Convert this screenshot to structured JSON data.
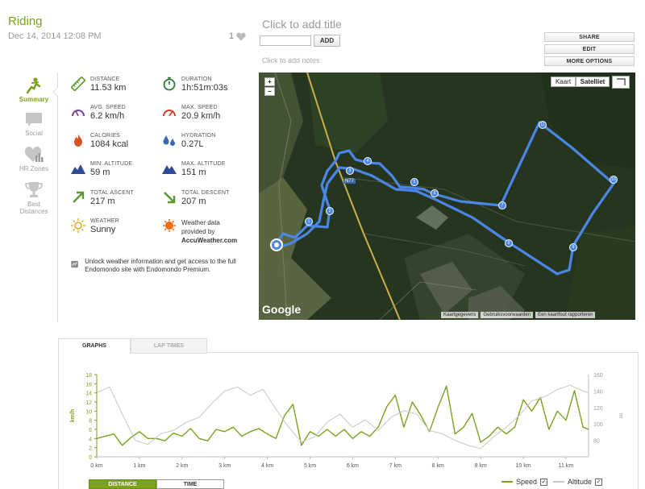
{
  "header": {
    "title": "Riding",
    "date": "Dec 14, 2014 12:08 PM",
    "likes": "1",
    "add_title": "Click to add title",
    "add_button": "ADD",
    "add_notes": "Click to add notes"
  },
  "actions": {
    "share": "SHARE",
    "edit": "EDIT",
    "more": "MORE OPTIONS"
  },
  "sidenav": {
    "summary": "Summary",
    "social": "Social",
    "hr_zones": "HR Zones",
    "best": "Best Distances"
  },
  "stats": {
    "distance": {
      "label": "DISTANCE",
      "value": "11.53 km"
    },
    "duration": {
      "label": "DURATION",
      "value": "1h:51m:03s"
    },
    "avg_speed": {
      "label": "AVG. SPEED",
      "value": "6.2 km/h"
    },
    "max_speed": {
      "label": "MAX. SPEED",
      "value": "20.9 km/h"
    },
    "calories": {
      "label": "CALORIES",
      "value": "1084 kcal"
    },
    "hydration": {
      "label": "HYDRATION",
      "value": "0.27L"
    },
    "min_alt": {
      "label": "MIN. ALTITUDE",
      "value": "59 m"
    },
    "max_alt": {
      "label": "MAX. ALTITUDE",
      "value": "151 m"
    },
    "ascent": {
      "label": "TOTAL ASCENT",
      "value": "217 m"
    },
    "descent": {
      "label": "TOTAL DESCENT",
      "value": "207 m"
    },
    "weather": {
      "label": "WEATHER",
      "value": "Sunny"
    },
    "weather_data": {
      "line1": "Weather data",
      "line2": "provided by",
      "brand": "AccuWeather.com"
    }
  },
  "unlock_text": "Unlock weather information and get access to the full Endomondo site with Endomondo Premium.",
  "map": {
    "zoom_in": "+",
    "zoom_out": "−",
    "type_map": "Kaart",
    "type_satellite": "Satelliet",
    "logo": "Google",
    "road_label": "N77",
    "footer": {
      "data": "Kaartgegevens",
      "terms": "Gebruiksvoorwaarden",
      "report": "Een kaartfout rapporteren"
    },
    "markers": [
      "1",
      "2",
      "3",
      "4",
      "5",
      "6",
      "7",
      "8",
      "9",
      "10",
      "11"
    ]
  },
  "graph_tabs": {
    "graphs": "GRAPHS",
    "laps": "LAP TIMES"
  },
  "graph_toggle": {
    "distance": "DISTANCE",
    "time": "TIME"
  },
  "legend": {
    "speed": "Speed",
    "altitude": "Altitude"
  },
  "colors": {
    "accent": "#7aa21d",
    "speed": "#7aa21d",
    "altitude": "#c8c8c8",
    "route": "#4a86e8"
  },
  "chart_data": {
    "type": "line",
    "xlabel": "",
    "ylabel": "km/h",
    "y2label": "m",
    "xlim": [
      0,
      11.53
    ],
    "ylim": [
      0,
      18
    ],
    "y2lim": [
      60,
      160
    ],
    "x_ticks": [
      "0 km",
      "1 km",
      "2 km",
      "3 km",
      "4 km",
      "5 km",
      "6 km",
      "7 km",
      "8 km",
      "9 km",
      "10 km",
      "11 km"
    ],
    "y_ticks": [
      "0",
      "2",
      "4",
      "6",
      "8",
      "10",
      "12",
      "14",
      "16",
      "18"
    ],
    "y2_ticks": [
      "80",
      "100",
      "120",
      "140",
      "160"
    ],
    "series": [
      {
        "name": "Speed",
        "axis": "left",
        "x": [
          0,
          0.2,
          0.4,
          0.6,
          0.8,
          1.0,
          1.2,
          1.4,
          1.6,
          1.8,
          2.0,
          2.2,
          2.4,
          2.6,
          2.8,
          3.0,
          3.2,
          3.4,
          3.6,
          3.8,
          4.0,
          4.2,
          4.4,
          4.6,
          4.8,
          5.0,
          5.2,
          5.4,
          5.6,
          5.8,
          6.0,
          6.2,
          6.4,
          6.6,
          6.8,
          7.0,
          7.2,
          7.4,
          7.6,
          7.8,
          8.0,
          8.2,
          8.4,
          8.6,
          8.8,
          9.0,
          9.2,
          9.4,
          9.6,
          9.8,
          10.0,
          10.2,
          10.4,
          10.6,
          10.8,
          11.0,
          11.2,
          11.4,
          11.53
        ],
        "values": [
          4,
          4.5,
          5,
          2.5,
          4.2,
          5.5,
          4,
          4,
          3.5,
          5.2,
          4.5,
          6.2,
          4,
          3.5,
          6,
          5.5,
          6.5,
          4.5,
          5.5,
          6.2,
          5,
          4,
          9,
          11.5,
          2.5,
          5.5,
          4.5,
          6,
          4.5,
          6,
          4,
          5.5,
          4.5,
          6.5,
          11,
          13.5,
          6.5,
          12,
          9,
          5.5,
          10.8,
          15.5,
          5,
          6.5,
          9.5,
          3.2,
          4.5,
          6.5,
          5,
          6.5,
          12.5,
          10,
          13,
          6,
          10,
          8,
          14.5,
          6.5,
          6
        ]
      },
      {
        "name": "Altitude",
        "axis": "right",
        "x": [
          0,
          0.3,
          0.6,
          0.9,
          1.2,
          1.5,
          1.8,
          2.1,
          2.4,
          2.7,
          3.0,
          3.3,
          3.6,
          3.9,
          4.2,
          4.5,
          4.8,
          5.1,
          5.4,
          5.7,
          6.0,
          6.3,
          6.6,
          6.9,
          7.2,
          7.5,
          7.8,
          8.1,
          8.4,
          8.7,
          9.0,
          9.3,
          9.6,
          9.9,
          10.2,
          10.5,
          10.8,
          11.1,
          11.4,
          11.53
        ],
        "values": [
          138,
          145,
          112,
          80,
          75,
          88,
          92,
          102,
          108,
          125,
          140,
          145,
          135,
          142,
          118,
          96,
          78,
          84,
          102,
          112,
          96,
          105,
          92,
          108,
          116,
          112,
          92,
          88,
          80,
          74,
          70,
          84,
          96,
          110,
          128,
          133,
          142,
          147,
          140,
          138
        ]
      }
    ],
    "legend": "bottom-right",
    "grid": false
  }
}
